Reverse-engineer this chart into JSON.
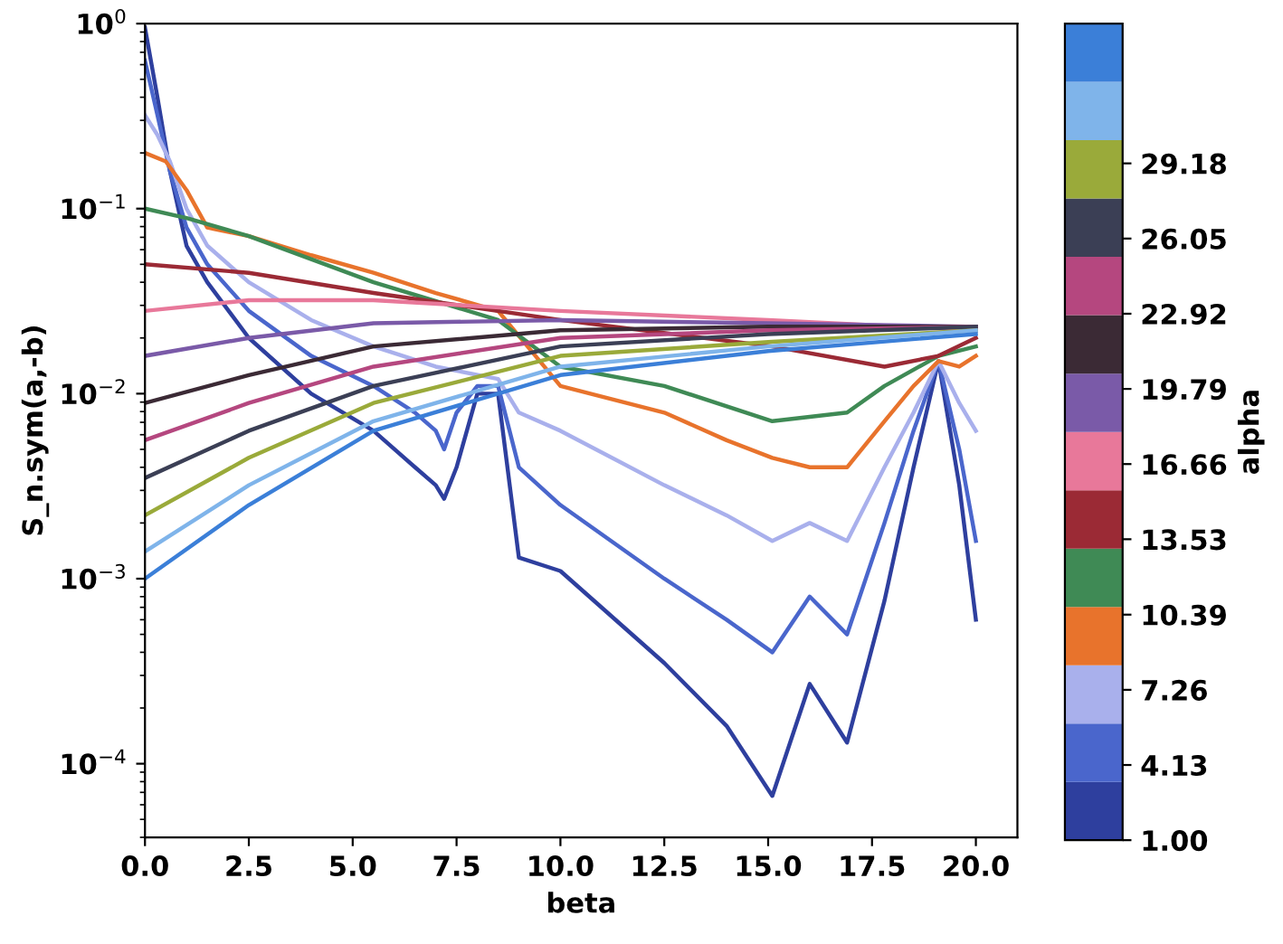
{
  "chart_data": {
    "type": "line",
    "xlabel": "beta",
    "ylabel": "S_n.sym(a,-b)",
    "clabel": "alpha",
    "log": "y",
    "grid": false,
    "marker": "none",
    "line_style": "solid",
    "xlim": [
      0,
      21
    ],
    "xticks": [
      {
        "value": 0,
        "label": "0.0"
      },
      2.5,
      {
        "value": 5,
        "label": "5.0"
      },
      7.5,
      {
        "value": 10,
        "label": "10.0"
      },
      12.5,
      {
        "value": 15,
        "label": "15.0"
      },
      17.5,
      {
        "value": 20,
        "label": "20.0"
      }
    ],
    "ylim": [
      4e-05,
      1
    ],
    "yticks": [
      {
        "value": 0.0001,
        "label": "10$^{−4}$"
      },
      {
        "value": 0.001,
        "label": "10$^{−3}$"
      },
      {
        "value": 0.01,
        "label": "10$^{−2}$"
      },
      {
        "value": 0.1,
        "label": "10$^{−1}$"
      },
      {
        "value": 1,
        "label": "10$^{0}$"
      }
    ],
    "clim": [
      1,
      35
    ],
    "cticks": [
      {
        "value": 1,
        "label": "1.00"
      },
      4.13,
      7.26,
      10.39,
      13.53,
      16.66,
      19.79,
      22.92,
      26.05,
      29.18
    ],
    "series": [
      {
        "color": "#2e3f9e",
        "x": [
          0,
          0.3,
          0.6,
          1,
          1.5,
          2.5,
          4,
          5.5,
          6.5,
          7,
          7.2,
          7.5,
          8,
          8.5,
          9,
          10,
          12.5,
          14,
          15.1,
          16,
          16.9,
          17.8,
          18.5,
          19.1,
          19.6,
          20
        ],
        "values": [
          0.95,
          0.4,
          0.16,
          0.063,
          0.04,
          0.02,
          0.01,
          0.0063,
          0.004,
          0.0032,
          0.0027,
          0.004,
          0.01,
          0.01,
          0.0013,
          0.0011,
          0.00035,
          0.00016,
          6.7e-05,
          0.00027,
          0.00013,
          0.00076,
          0.004,
          0.015,
          0.0032,
          0.0006
        ]
      },
      {
        "color": "#4a66cc",
        "x": [
          0,
          0.3,
          0.6,
          1,
          1.5,
          2.5,
          4,
          5.5,
          6.5,
          7,
          7.2,
          7.5,
          8,
          8.5,
          9,
          10,
          12.5,
          14,
          15.1,
          16,
          16.9,
          17.8,
          18.5,
          19.1,
          19.6,
          20
        ],
        "values": [
          0.63,
          0.32,
          0.16,
          0.079,
          0.05,
          0.028,
          0.016,
          0.011,
          0.0079,
          0.0063,
          0.005,
          0.0079,
          0.011,
          0.011,
          0.004,
          0.0025,
          0.001,
          0.0006,
          0.0004,
          0.0008,
          0.0005,
          0.002,
          0.0063,
          0.015,
          0.005,
          0.0016
        ]
      },
      {
        "color": "#a9b0ec",
        "x": [
          0,
          0.3,
          0.6,
          1,
          1.5,
          2.5,
          4,
          5.5,
          7,
          8.5,
          9,
          10,
          12.5,
          14,
          15.1,
          16,
          16.9,
          17.8,
          18.5,
          19.1,
          19.6,
          20
        ],
        "values": [
          0.32,
          0.25,
          0.18,
          0.1,
          0.063,
          0.04,
          0.025,
          0.018,
          0.014,
          0.012,
          0.0079,
          0.0063,
          0.0032,
          0.0022,
          0.0016,
          0.002,
          0.0016,
          0.004,
          0.0079,
          0.015,
          0.0089,
          0.0063
        ]
      },
      {
        "color": "#e8732c",
        "x": [
          0,
          0.5,
          1,
          1.5,
          2.5,
          4,
          5.5,
          7,
          8.5,
          10,
          12.5,
          14,
          15.1,
          16,
          16.9,
          17.8,
          18.5,
          19.1,
          19.6,
          20
        ],
        "values": [
          0.2,
          0.18,
          0.126,
          0.079,
          0.071,
          0.056,
          0.045,
          0.035,
          0.028,
          0.011,
          0.0079,
          0.0056,
          0.0045,
          0.004,
          0.004,
          0.0071,
          0.011,
          0.015,
          0.014,
          0.016
        ]
      },
      {
        "color": "#3f8a55",
        "x": [
          0,
          1,
          2.5,
          5.5,
          8.5,
          10,
          12.5,
          15.1,
          16.9,
          17.8,
          19.1,
          20
        ],
        "values": [
          0.1,
          0.089,
          0.071,
          0.04,
          0.025,
          0.014,
          0.011,
          0.0071,
          0.0079,
          0.011,
          0.016,
          0.018
        ]
      },
      {
        "color": "#9b2a35",
        "x": [
          0,
          2.5,
          5.5,
          10,
          15.1,
          17.8,
          19.1,
          20
        ],
        "values": [
          0.05,
          0.045,
          0.035,
          0.025,
          0.018,
          0.014,
          0.016,
          0.02
        ]
      },
      {
        "color": "#e8789a",
        "x": [
          0,
          2.5,
          5.5,
          10,
          15,
          20
        ],
        "values": [
          0.028,
          0.032,
          0.032,
          0.028,
          0.025,
          0.022
        ]
      },
      {
        "color": "#7a5aa8",
        "x": [
          0,
          2.5,
          5.5,
          10,
          15,
          20
        ],
        "values": [
          0.016,
          0.02,
          0.024,
          0.025,
          0.024,
          0.023
        ]
      },
      {
        "color": "#3b2a35",
        "x": [
          0,
          2.5,
          5.5,
          10,
          15,
          20
        ],
        "values": [
          0.0089,
          0.0126,
          0.018,
          0.022,
          0.023,
          0.023
        ]
      },
      {
        "color": "#b5477f",
        "x": [
          0,
          2.5,
          5.5,
          10,
          15,
          20
        ],
        "values": [
          0.0056,
          0.0089,
          0.014,
          0.02,
          0.022,
          0.023
        ]
      },
      {
        "color": "#3b3f55",
        "x": [
          0,
          2.5,
          5.5,
          10,
          15,
          20
        ],
        "values": [
          0.0035,
          0.0063,
          0.011,
          0.018,
          0.021,
          0.023
        ]
      },
      {
        "color": "#9aaa3a",
        "x": [
          0,
          2.5,
          5.5,
          10,
          15,
          20
        ],
        "values": [
          0.0022,
          0.0045,
          0.0089,
          0.016,
          0.019,
          0.022
        ]
      },
      {
        "color": "#7fb4ea",
        "x": [
          0,
          2.5,
          5.5,
          10,
          15,
          20
        ],
        "values": [
          0.0014,
          0.0032,
          0.0071,
          0.014,
          0.018,
          0.022
        ]
      },
      {
        "color": "#3b7fd8",
        "x": [
          0,
          2.5,
          5.5,
          10,
          15,
          20
        ],
        "values": [
          0.001,
          0.0025,
          0.0063,
          0.0126,
          0.017,
          0.021
        ]
      }
    ]
  }
}
